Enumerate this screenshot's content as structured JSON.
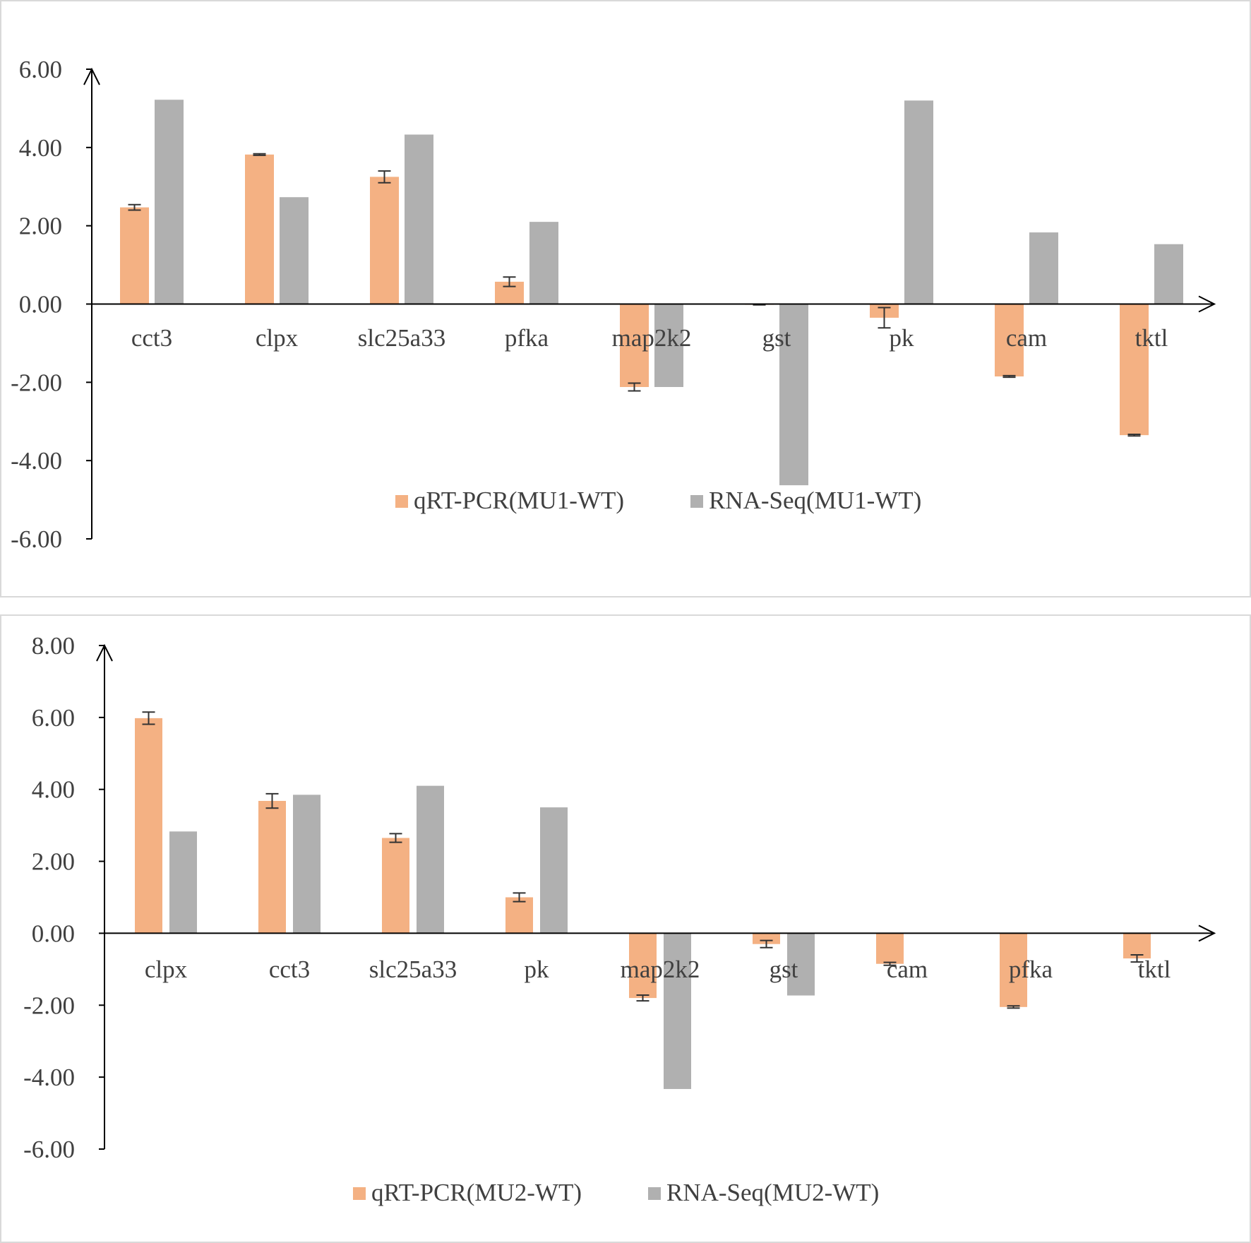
{
  "chart_data": [
    {
      "type": "bar",
      "categories": [
        "cct3",
        "clpx",
        "slc25a33",
        "pfka",
        "map2k2",
        "gst",
        "pk",
        "cam",
        "tktl"
      ],
      "series": [
        {
          "name": "qRT-PCR(MU1-WT)",
          "color": "#f4b183",
          "values": [
            2.47,
            3.82,
            3.25,
            0.57,
            -2.12,
            -0.02,
            -0.35,
            -1.85,
            -3.35
          ],
          "errors": [
            0.07,
            0.02,
            0.15,
            0.12,
            0.1,
            0.0,
            0.26,
            0.02,
            0.02
          ]
        },
        {
          "name": "RNA-Seq(MU1-WT)",
          "color": "#b0b0b0",
          "values": [
            5.22,
            2.73,
            4.33,
            2.1,
            -2.12,
            -4.63,
            5.2,
            1.83,
            1.53
          ]
        }
      ],
      "ylim": [
        -6,
        6
      ],
      "yticks": [
        "6.00",
        "4.00",
        "2.00",
        "0.00",
        "-2.00",
        "-4.00",
        "-6.00"
      ],
      "legend": "bottom-center",
      "xlabel": "",
      "ylabel": "",
      "title": ""
    },
    {
      "type": "bar",
      "categories": [
        "clpx",
        "cct3",
        "slc25a33",
        "pk",
        "map2k2",
        "gst",
        "cam",
        "pfka",
        "tktl"
      ],
      "series": [
        {
          "name": "qRT-PCR(MU2-WT)",
          "color": "#f4b183",
          "values": [
            5.98,
            3.68,
            2.65,
            1.0,
            -1.8,
            -0.3,
            -0.85,
            -2.05,
            -0.7
          ],
          "errors": [
            0.17,
            0.2,
            0.12,
            0.12,
            0.08,
            0.1,
            0.04,
            0.03,
            0.1
          ]
        },
        {
          "name": "RNA-Seq(MU2-WT)",
          "color": "#b0b0b0",
          "values": [
            2.83,
            3.85,
            4.1,
            3.5,
            -4.33,
            -1.73,
            0.0,
            0.0,
            0.0
          ]
        }
      ],
      "ylim": [
        -6,
        8
      ],
      "yticks": [
        "8.00",
        "6.00",
        "4.00",
        "2.00",
        "0.00",
        "-2.00",
        "-4.00",
        "-6.00"
      ],
      "legend": "bottom-center",
      "xlabel": "",
      "ylabel": "",
      "title": ""
    }
  ]
}
